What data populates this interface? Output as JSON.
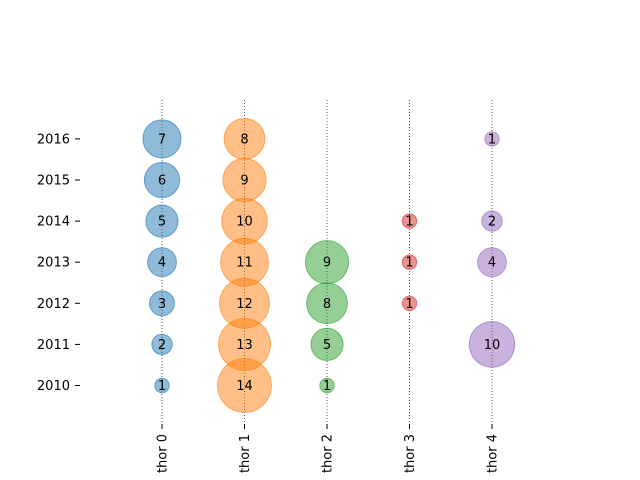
{
  "chart_data": {
    "type": "scatter",
    "subtype": "bubble",
    "categories": [
      "thor 0",
      "thor 1",
      "thor 2",
      "thor 3",
      "thor 4"
    ],
    "years": [
      "2010",
      "2011",
      "2012",
      "2013",
      "2014",
      "2015",
      "2016"
    ],
    "series": [
      {
        "category": "thor 0",
        "color": "#1f77b4",
        "points": [
          {
            "year": "2010",
            "value": 1
          },
          {
            "year": "2011",
            "value": 2
          },
          {
            "year": "2012",
            "value": 3
          },
          {
            "year": "2013",
            "value": 4
          },
          {
            "year": "2014",
            "value": 5
          },
          {
            "year": "2015",
            "value": 6
          },
          {
            "year": "2016",
            "value": 7
          }
        ]
      },
      {
        "category": "thor 1",
        "color": "#ff7f0e",
        "points": [
          {
            "year": "2010",
            "value": 14
          },
          {
            "year": "2011",
            "value": 13
          },
          {
            "year": "2012",
            "value": 12
          },
          {
            "year": "2013",
            "value": 11
          },
          {
            "year": "2014",
            "value": 10
          },
          {
            "year": "2015",
            "value": 9
          },
          {
            "year": "2016",
            "value": 8
          }
        ]
      },
      {
        "category": "thor 2",
        "color": "#2ca02c",
        "points": [
          {
            "year": "2010",
            "value": 1
          },
          {
            "year": "2011",
            "value": 5
          },
          {
            "year": "2012",
            "value": 8
          },
          {
            "year": "2013",
            "value": 9
          }
        ]
      },
      {
        "category": "thor 3",
        "color": "#d62728",
        "points": [
          {
            "year": "2012",
            "value": 1
          },
          {
            "year": "2013",
            "value": 1
          },
          {
            "year": "2014",
            "value": 1
          }
        ]
      },
      {
        "category": "thor 4",
        "color": "#9467bd",
        "points": [
          {
            "year": "2011",
            "value": 10
          },
          {
            "year": "2013",
            "value": 4
          },
          {
            "year": "2014",
            "value": 2
          },
          {
            "year": "2016",
            "value": 1
          }
        ]
      }
    ],
    "grid": "vertical-dotted",
    "title": "",
    "xlabel": "",
    "ylabel": ""
  }
}
